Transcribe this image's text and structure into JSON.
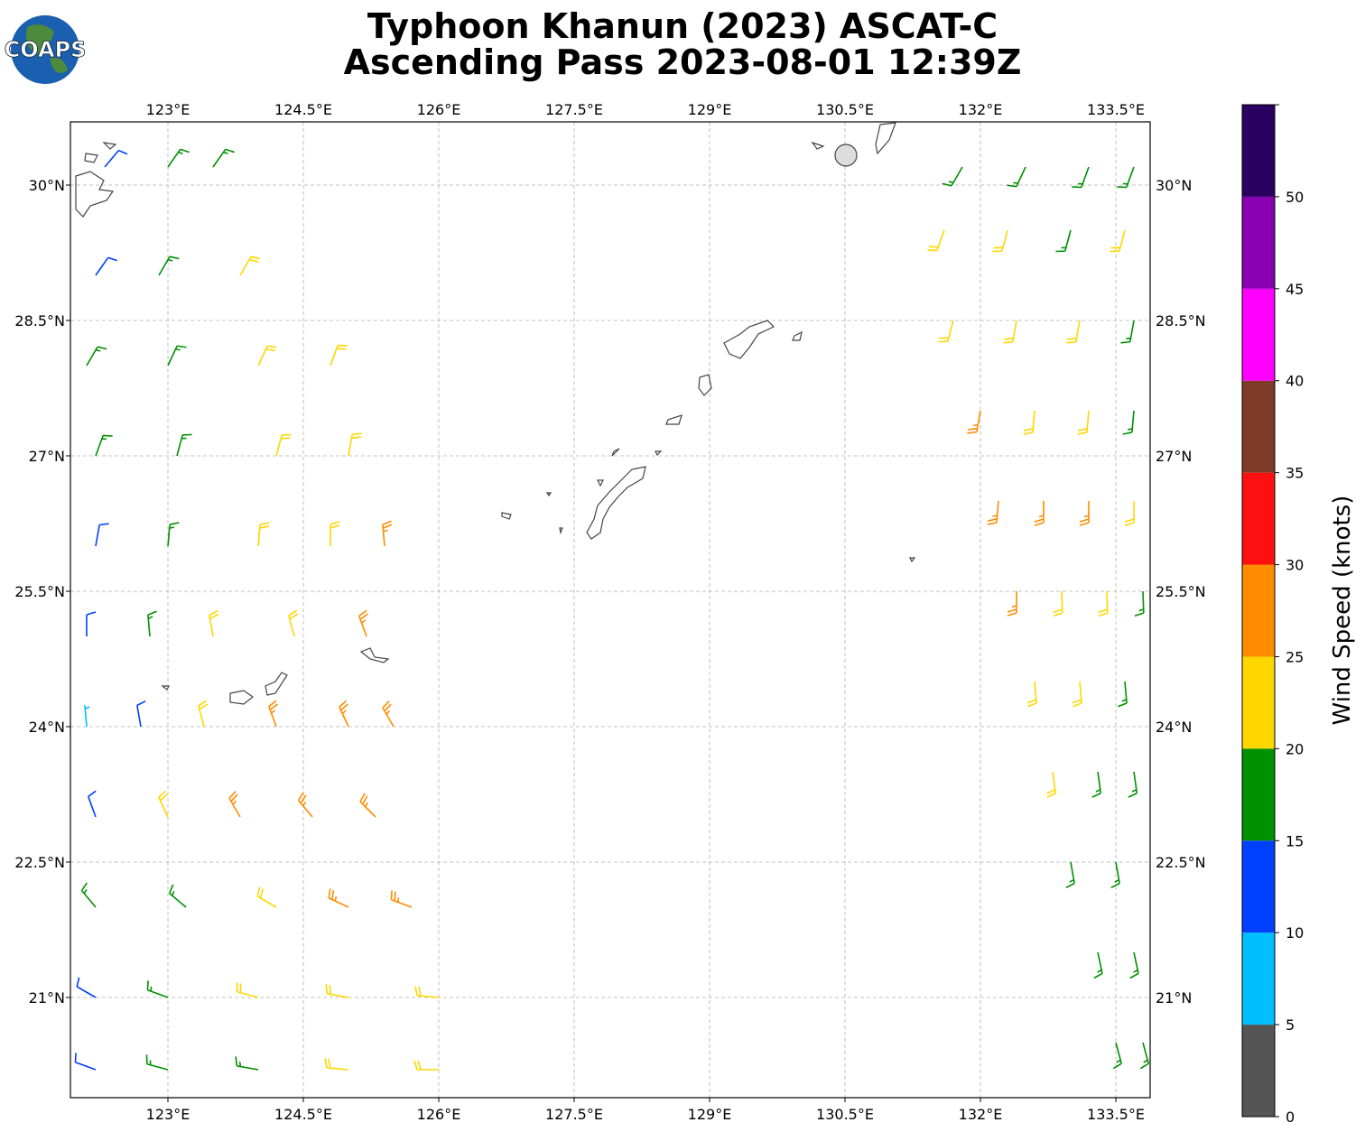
{
  "map": {
    "type": "wind-barbs",
    "logo": "COAPS",
    "title": "Typhoon Khanun (2023) ASCAT-C",
    "subtitle": "Ascending Pass 2023-08-01 12:39Z",
    "xlim": [
      121.92,
      133.88
    ],
    "ylim": [
      19.89,
      30.7
    ],
    "xticks": [
      {
        "value": 123,
        "label": "123°E"
      },
      {
        "value": 124.5,
        "label": "124.5°E"
      },
      {
        "value": 126,
        "label": "126°E"
      },
      {
        "value": 127.5,
        "label": "127.5°E"
      },
      {
        "value": 129,
        "label": "129°E"
      },
      {
        "value": 130.5,
        "label": "130.5°E"
      },
      {
        "value": 132,
        "label": "132°E"
      },
      {
        "value": 133.5,
        "label": "133.5°E"
      }
    ],
    "yticks": [
      {
        "value": 21,
        "label": "21°N"
      },
      {
        "value": 22.5,
        "label": "22.5°N"
      },
      {
        "value": 24,
        "label": "24°N"
      },
      {
        "value": 25.5,
        "label": "25.5°N"
      },
      {
        "value": 27,
        "label": "27°N"
      },
      {
        "value": 28.5,
        "label": "28.5°N"
      },
      {
        "value": 30,
        "label": "30°N"
      }
    ],
    "grid": true,
    "colorbar": {
      "label": "Wind Speed (knots)",
      "lim": [
        0,
        55
      ],
      "bounds": [
        0,
        5,
        10,
        15,
        20,
        25,
        30,
        35,
        40,
        45,
        50,
        55
      ],
      "colors": [
        "#555555",
        "#00bfff",
        "#0040ff",
        "#009000",
        "#ffd700",
        "#ff8c00",
        "#ff1010",
        "#803a28",
        "#ff00ff",
        "#8800b0",
        "#2a0060"
      ],
      "ticks": [
        0,
        5,
        10,
        15,
        20,
        25,
        30,
        35,
        40,
        45,
        50
      ]
    },
    "barbs": {
      "lon": [
        122.3,
        123.0,
        123.5,
        122.2,
        122.9,
        123.8,
        122.1,
        123.0,
        124.0,
        124.8,
        122.2,
        123.1,
        124.2,
        125.0,
        122.2,
        123.0,
        124.0,
        124.8,
        125.4,
        122.1,
        122.8,
        123.5,
        124.4,
        125.2,
        122.1,
        122.7,
        123.4,
        124.2,
        125.0,
        125.5,
        122.2,
        123.0,
        123.8,
        124.6,
        125.3,
        122.2,
        123.2,
        124.2,
        125.0,
        125.7,
        122.2,
        123.0,
        124.0,
        125.0,
        126.0,
        122.2,
        123.0,
        124.0,
        125.0,
        126.0,
        131.8,
        132.5,
        133.2,
        133.7,
        131.6,
        132.3,
        133.0,
        133.6,
        131.7,
        132.4,
        133.1,
        133.7,
        132.0,
        132.6,
        133.2,
        133.7,
        132.2,
        132.7,
        133.2,
        133.7,
        132.4,
        132.9,
        133.4,
        133.8,
        132.6,
        133.1,
        133.6,
        132.8,
        133.3,
        133.7,
        133.0,
        133.5,
        133.3,
        133.7,
        133.5,
        133.8
      ],
      "lat": [
        30.2,
        30.2,
        30.2,
        29.0,
        29.0,
        29.0,
        28.0,
        28.0,
        28.0,
        28.0,
        27.0,
        27.0,
        27.0,
        27.0,
        26.0,
        26.0,
        26.0,
        26.0,
        26.0,
        25.0,
        25.0,
        25.0,
        25.0,
        25.0,
        24.0,
        24.0,
        24.0,
        24.0,
        24.0,
        24.0,
        23.0,
        23.0,
        23.0,
        23.0,
        23.0,
        22.0,
        22.0,
        22.0,
        22.0,
        22.0,
        21.0,
        21.0,
        21.0,
        21.0,
        21.0,
        20.2,
        20.2,
        20.2,
        20.2,
        20.2,
        30.2,
        30.2,
        30.2,
        30.2,
        29.5,
        29.5,
        29.5,
        29.5,
        28.5,
        28.5,
        28.5,
        28.5,
        27.5,
        27.5,
        27.5,
        27.5,
        26.5,
        26.5,
        26.5,
        26.5,
        25.5,
        25.5,
        25.5,
        25.5,
        24.5,
        24.5,
        24.5,
        23.5,
        23.5,
        23.5,
        22.5,
        22.5,
        21.5,
        21.5,
        20.5,
        20.5
      ],
      "speed": [
        12,
        17,
        17,
        13,
        17,
        22,
        16,
        18,
        22,
        23,
        17,
        19,
        23,
        23,
        12,
        17,
        22,
        24,
        26,
        13,
        17,
        22,
        24,
        27,
        7,
        13,
        22,
        27,
        28,
        26,
        12,
        22,
        27,
        28,
        29,
        17,
        18,
        22,
        26,
        27,
        13,
        17,
        22,
        23,
        23,
        12,
        16,
        19,
        22,
        22,
        17,
        18,
        18,
        17,
        22,
        22,
        18,
        22,
        22,
        22,
        22,
        17,
        27,
        22,
        22,
        17,
        28,
        27,
        26,
        22,
        27,
        22,
        22,
        17,
        22,
        22,
        17,
        22,
        18,
        17,
        17,
        17,
        17,
        17,
        16,
        17
      ],
      "dir": [
        40,
        35,
        35,
        35,
        30,
        30,
        30,
        25,
        25,
        20,
        20,
        15,
        15,
        10,
        10,
        5,
        5,
        0,
        355,
        0,
        355,
        350,
        345,
        340,
        355,
        350,
        345,
        340,
        335,
        330,
        340,
        335,
        330,
        320,
        315,
        320,
        310,
        300,
        295,
        290,
        300,
        290,
        285,
        280,
        275,
        290,
        285,
        280,
        275,
        270,
        210,
        205,
        200,
        200,
        200,
        195,
        195,
        195,
        195,
        190,
        190,
        190,
        190,
        185,
        185,
        185,
        185,
        180,
        180,
        180,
        180,
        178,
        178,
        178,
        175,
        175,
        175,
        172,
        172,
        172,
        170,
        170,
        168,
        168,
        165,
        165
      ]
    }
  }
}
